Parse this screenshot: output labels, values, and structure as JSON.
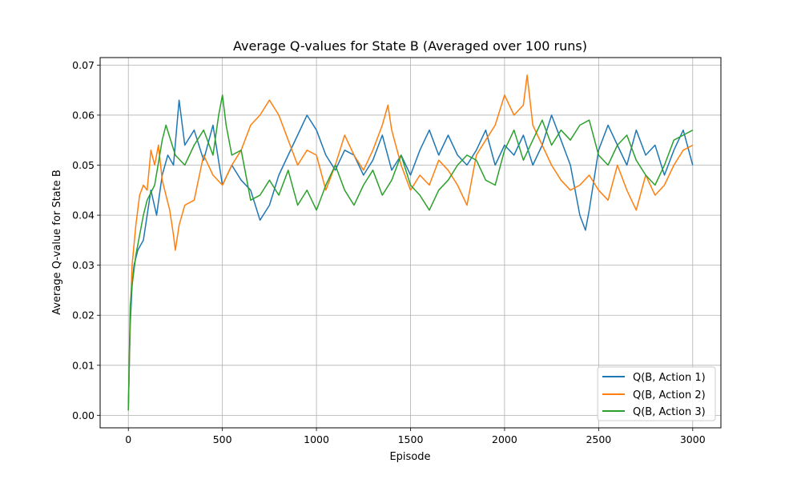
{
  "chart_data": {
    "type": "line",
    "title": "Average Q-values for State B (Averaged over 100 runs)",
    "xlabel": "Episode",
    "ylabel": "Average Q-value for State B",
    "xlim": [
      -150,
      3150
    ],
    "ylim": [
      -0.0025,
      0.0715
    ],
    "xticks": [
      0,
      500,
      1000,
      1500,
      2000,
      2500,
      3000
    ],
    "xtick_labels": [
      "0",
      "500",
      "1000",
      "1500",
      "2000",
      "2500",
      "3000"
    ],
    "yticks": [
      0.0,
      0.01,
      0.02,
      0.03,
      0.04,
      0.05,
      0.06,
      0.07
    ],
    "ytick_labels": [
      "0.00",
      "0.01",
      "0.02",
      "0.03",
      "0.04",
      "0.05",
      "0.06",
      "0.07"
    ],
    "grid": true,
    "legend_position": "lower-right",
    "series": [
      {
        "name": "Q(B, Action 1)",
        "color": "#1f77b4",
        "x": [
          0,
          10,
          20,
          30,
          50,
          80,
          120,
          150,
          180,
          210,
          240,
          270,
          300,
          350,
          400,
          450,
          500,
          550,
          600,
          650,
          700,
          750,
          800,
          850,
          900,
          950,
          1000,
          1050,
          1100,
          1150,
          1200,
          1250,
          1300,
          1350,
          1400,
          1450,
          1500,
          1550,
          1600,
          1650,
          1700,
          1750,
          1800,
          1850,
          1900,
          1950,
          2000,
          2050,
          2100,
          2150,
          2200,
          2250,
          2300,
          2350,
          2400,
          2430,
          2450,
          2500,
          2550,
          2600,
          2650,
          2700,
          2750,
          2800,
          2850,
          2900,
          2950,
          3000
        ],
        "y": [
          0.001,
          0.018,
          0.026,
          0.03,
          0.033,
          0.035,
          0.045,
          0.04,
          0.048,
          0.052,
          0.05,
          0.063,
          0.054,
          0.057,
          0.051,
          0.058,
          0.046,
          0.05,
          0.047,
          0.045,
          0.039,
          0.042,
          0.048,
          0.052,
          0.056,
          0.06,
          0.057,
          0.052,
          0.049,
          0.053,
          0.052,
          0.048,
          0.051,
          0.056,
          0.049,
          0.052,
          0.048,
          0.053,
          0.057,
          0.052,
          0.056,
          0.052,
          0.05,
          0.053,
          0.057,
          0.05,
          0.054,
          0.052,
          0.056,
          0.05,
          0.054,
          0.06,
          0.055,
          0.05,
          0.04,
          0.037,
          0.041,
          0.053,
          0.058,
          0.054,
          0.05,
          0.057,
          0.052,
          0.054,
          0.048,
          0.053,
          0.057,
          0.05
        ]
      },
      {
        "name": "Q(B, Action 2)",
        "color": "#ff7f0e",
        "x": [
          0,
          10,
          20,
          40,
          60,
          80,
          100,
          120,
          140,
          160,
          180,
          200,
          220,
          240,
          250,
          270,
          300,
          350,
          400,
          450,
          500,
          550,
          600,
          650,
          700,
          750,
          800,
          850,
          900,
          950,
          1000,
          1050,
          1100,
          1150,
          1200,
          1250,
          1300,
          1350,
          1380,
          1400,
          1450,
          1500,
          1550,
          1600,
          1650,
          1700,
          1750,
          1800,
          1850,
          1900,
          1950,
          2000,
          2050,
          2100,
          2120,
          2150,
          2200,
          2250,
          2300,
          2350,
          2400,
          2450,
          2500,
          2550,
          2600,
          2650,
          2700,
          2750,
          2800,
          2850,
          2900,
          2950,
          3000
        ],
        "y": [
          0.001,
          0.02,
          0.03,
          0.038,
          0.044,
          0.046,
          0.045,
          0.053,
          0.05,
          0.054,
          0.047,
          0.044,
          0.041,
          0.036,
          0.033,
          0.038,
          0.042,
          0.043,
          0.052,
          0.048,
          0.046,
          0.05,
          0.053,
          0.058,
          0.06,
          0.063,
          0.06,
          0.055,
          0.05,
          0.053,
          0.052,
          0.045,
          0.05,
          0.056,
          0.052,
          0.049,
          0.053,
          0.058,
          0.062,
          0.057,
          0.05,
          0.045,
          0.048,
          0.046,
          0.051,
          0.049,
          0.046,
          0.042,
          0.052,
          0.055,
          0.058,
          0.064,
          0.06,
          0.062,
          0.068,
          0.058,
          0.054,
          0.05,
          0.047,
          0.045,
          0.046,
          0.048,
          0.045,
          0.043,
          0.05,
          0.045,
          0.041,
          0.048,
          0.044,
          0.046,
          0.05,
          0.053,
          0.054
        ]
      },
      {
        "name": "Q(B, Action 3)",
        "color": "#2ca02c",
        "x": [
          0,
          10,
          20,
          40,
          60,
          80,
          100,
          140,
          180,
          200,
          250,
          300,
          350,
          400,
          450,
          480,
          500,
          520,
          550,
          600,
          650,
          700,
          750,
          800,
          850,
          900,
          950,
          1000,
          1050,
          1100,
          1150,
          1200,
          1250,
          1300,
          1350,
          1400,
          1450,
          1500,
          1550,
          1600,
          1650,
          1700,
          1750,
          1800,
          1850,
          1900,
          1950,
          2000,
          2050,
          2100,
          2150,
          2200,
          2250,
          2300,
          2350,
          2400,
          2450,
          2500,
          2550,
          2600,
          2650,
          2700,
          2750,
          2800,
          2850,
          2900,
          2950,
          3000
        ],
        "y": [
          0.001,
          0.022,
          0.026,
          0.032,
          0.036,
          0.04,
          0.043,
          0.046,
          0.055,
          0.058,
          0.052,
          0.05,
          0.054,
          0.057,
          0.052,
          0.06,
          0.064,
          0.058,
          0.052,
          0.053,
          0.043,
          0.044,
          0.047,
          0.044,
          0.049,
          0.042,
          0.045,
          0.041,
          0.046,
          0.05,
          0.045,
          0.042,
          0.046,
          0.049,
          0.044,
          0.047,
          0.052,
          0.046,
          0.044,
          0.041,
          0.045,
          0.047,
          0.05,
          0.052,
          0.051,
          0.047,
          0.046,
          0.053,
          0.057,
          0.051,
          0.055,
          0.059,
          0.054,
          0.057,
          0.055,
          0.058,
          0.059,
          0.052,
          0.05,
          0.054,
          0.056,
          0.051,
          0.048,
          0.046,
          0.05,
          0.055,
          0.056,
          0.057
        ]
      }
    ]
  }
}
